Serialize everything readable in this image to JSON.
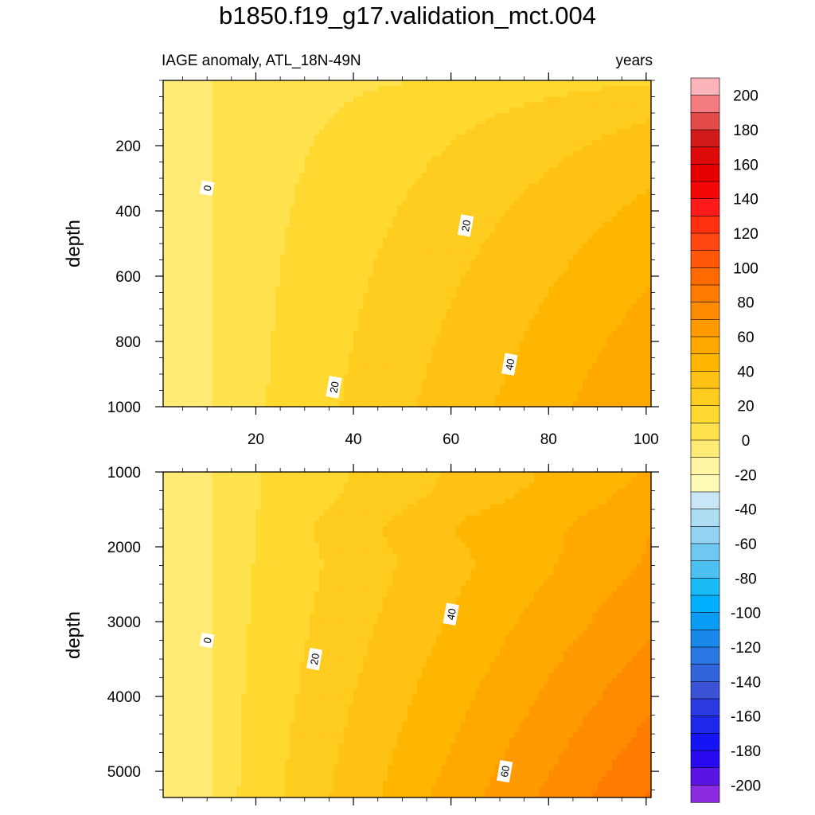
{
  "title": "b1850.f19_g17.validation_mct.004",
  "panel_left_label": "IAGE anomaly, ATL_18N-49N",
  "panel_right_label": "years",
  "chart_data": [
    {
      "type": "heatmap",
      "panel": "upper",
      "xlabel": "",
      "ylabel": "depth",
      "xlim": [
        1,
        101
      ],
      "ylim": [
        1000,
        0
      ],
      "x_ticks": [
        20,
        40,
        60,
        80,
        100
      ],
      "y_ticks": [
        200,
        400,
        600,
        800,
        1000
      ],
      "contour_labels": [
        {
          "text": "0",
          "x": 10,
          "y": 330
        },
        {
          "text": "20",
          "x": 36,
          "y": 940
        },
        {
          "text": "20",
          "x": 63,
          "y": 445
        },
        {
          "text": "40",
          "x": 72,
          "y": 870
        }
      ]
    },
    {
      "type": "heatmap",
      "panel": "lower",
      "xlabel": "",
      "ylabel": "depth",
      "xlim": [
        1,
        101
      ],
      "ylim": [
        5350,
        1000
      ],
      "y_ticks": [
        1000,
        2000,
        3000,
        4000,
        5000
      ],
      "contour_labels": [
        {
          "text": "0",
          "x": 10,
          "y": 3250
        },
        {
          "text": "20",
          "x": 32,
          "y": 3500
        },
        {
          "text": "40",
          "x": 60,
          "y": 2900
        },
        {
          "text": "60",
          "x": 71,
          "y": 5000
        }
      ]
    }
  ],
  "colorbar": {
    "ticks": [
      "200",
      "180",
      "160",
      "140",
      "120",
      "100",
      "80",
      "60",
      "40",
      "20",
      "0",
      "-20",
      "-40",
      "-60",
      "-80",
      "-100",
      "-120",
      "-140",
      "-160",
      "-180",
      "-200"
    ],
    "colors": [
      "#fbb4b9",
      "#f27b80",
      "#e34a4a",
      "#d21a1a",
      "#de0a0a",
      "#e60000",
      "#f50505",
      "#ff1a1a",
      "#ff3010",
      "#ff4510",
      "#ff5808",
      "#ff6a00",
      "#ff7c00",
      "#ff8c00",
      "#ff9a00",
      "#ffa800",
      "#ffb600",
      "#ffc214",
      "#ffcc1f",
      "#ffd830",
      "#ffe24d",
      "#ffeb75",
      "#fff5a3",
      "#fffbb5",
      "#c8e6f5",
      "#aedcf2",
      "#93d2f0",
      "#6ec8ef",
      "#4cc0f0",
      "#19bbf5",
      "#00b0ff",
      "#0a9cf5",
      "#1a88ea",
      "#2a76e2",
      "#3264db",
      "#3a52d6",
      "#2a3ae0",
      "#1e28ea",
      "#1414f5",
      "#2a0af0",
      "#5a14e6",
      "#8a2be2"
    ]
  }
}
